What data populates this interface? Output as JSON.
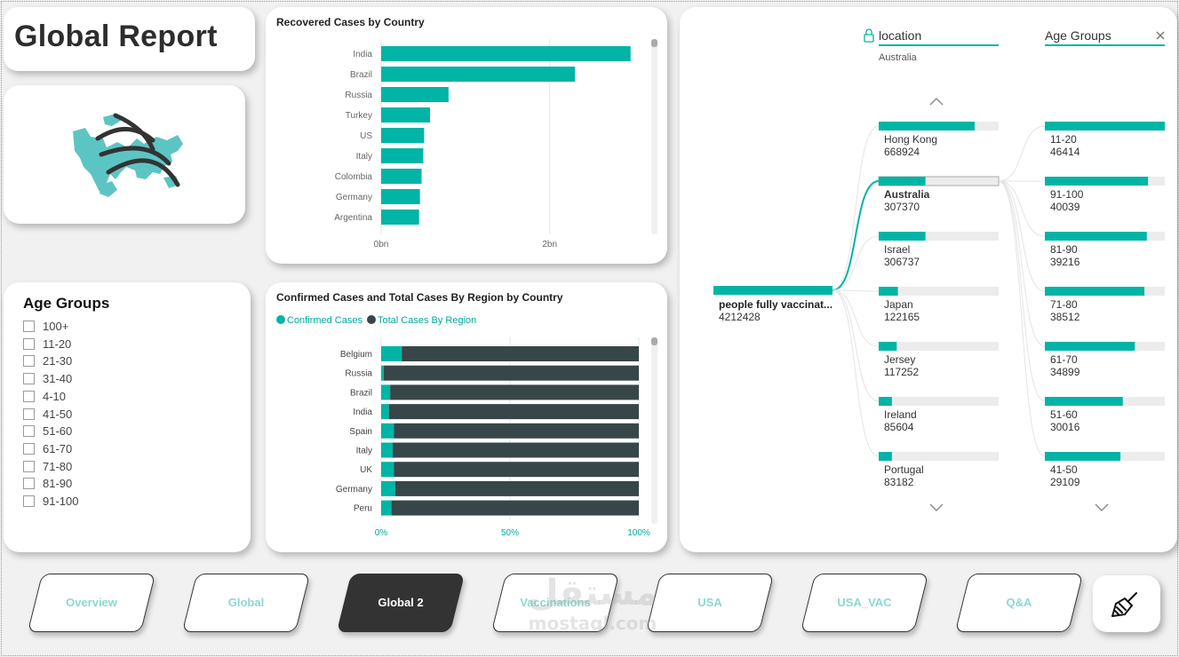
{
  "report_title": "Global Report",
  "age_slicer": {
    "title": "Age Groups",
    "items": [
      "100+",
      "11-20",
      "21-30",
      "31-40",
      "4-10",
      "41-50",
      "51-60",
      "61-70",
      "71-80",
      "81-90",
      "91-100"
    ]
  },
  "chart_data": [
    {
      "type": "bar",
      "title": "Recovered Cases by Country",
      "categories": [
        "India",
        "Brazil",
        "Russia",
        "Turkey",
        "US",
        "Italy",
        "Colombia",
        "Germany",
        "Argentina"
      ],
      "values": [
        2.96,
        2.3,
        0.8,
        0.58,
        0.51,
        0.5,
        0.48,
        0.46,
        0.45
      ],
      "x_ticks": [
        "0bn",
        "2bn"
      ],
      "xlim": [
        0,
        3.1
      ],
      "color": "#00b4a6"
    },
    {
      "type": "bar",
      "title": "Confirmed Cases and Total Cases By Region by Country",
      "stacked_percent": true,
      "categories": [
        "Belgium",
        "Russia",
        "Brazil",
        "India",
        "Spain",
        "Italy",
        "UK",
        "Germany",
        "Peru"
      ],
      "series": [
        {
          "name": "Confirmed Cases",
          "color": "#00b4a6",
          "values": [
            8,
            1,
            3.5,
            3,
            5,
            4.5,
            5,
            5.5,
            4
          ]
        },
        {
          "name": "Total Cases By Region",
          "color": "#374649",
          "values": [
            92,
            99,
            96.5,
            97,
            95,
            95.5,
            95,
            94.5,
            96
          ]
        }
      ],
      "x_ticks": [
        "0%",
        "50%",
        "100%"
      ]
    }
  ],
  "decomposition_tree": {
    "root": {
      "label": "people fully vaccinat...",
      "value": "4212428"
    },
    "level1": {
      "header": "location",
      "selected": "Australia",
      "nodes": [
        {
          "label": "Hong Kong",
          "value": "668924",
          "fill": 0.8
        },
        {
          "label": "Australia",
          "value": "307370",
          "fill": 0.39,
          "selected": true
        },
        {
          "label": "Israel",
          "value": "306737",
          "fill": 0.39
        },
        {
          "label": "Japan",
          "value": "122165",
          "fill": 0.16
        },
        {
          "label": "Jersey",
          "value": "117252",
          "fill": 0.15
        },
        {
          "label": "Ireland",
          "value": "85604",
          "fill": 0.11
        },
        {
          "label": "Portugal",
          "value": "83182",
          "fill": 0.11
        }
      ]
    },
    "level2": {
      "header": "Age Groups",
      "close_icon": "close-icon",
      "nodes": [
        {
          "label": "11-20",
          "value": "46414",
          "fill": 1.0
        },
        {
          "label": "91-100",
          "value": "40039",
          "fill": 0.86
        },
        {
          "label": "81-90",
          "value": "39216",
          "fill": 0.85
        },
        {
          "label": "71-80",
          "value": "38512",
          "fill": 0.83
        },
        {
          "label": "61-70",
          "value": "34899",
          "fill": 0.75
        },
        {
          "label": "51-60",
          "value": "30016",
          "fill": 0.65
        },
        {
          "label": "41-50",
          "value": "29109",
          "fill": 0.63
        }
      ]
    }
  },
  "nav": {
    "buttons": [
      "Overview",
      "Global",
      "Global 2",
      "Vaccinations",
      "USA",
      "USA_VAC",
      "Q&A"
    ],
    "active": "Global 2",
    "clear_icon": "broom-icon"
  },
  "watermark": {
    "ar": "مستقل",
    "en": "mostaql.com"
  },
  "colors": {
    "accent": "#00b4a6",
    "dark": "#374649",
    "nav_text": "#8cd8d2"
  }
}
